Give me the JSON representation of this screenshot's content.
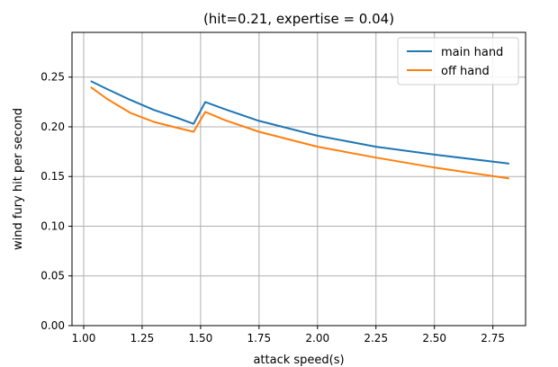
{
  "chart_data": {
    "type": "line",
    "title": "(hit=0.21, expertise = 0.04)",
    "xlabel": "attack speed(s)",
    "ylabel": "wind fury hit per second",
    "xlim": [
      0.95,
      2.89
    ],
    "ylim": [
      0.0,
      0.295
    ],
    "xticks": [
      1.0,
      1.25,
      1.5,
      1.75,
      2.0,
      2.25,
      2.5,
      2.75
    ],
    "xtick_labels": [
      "1.00",
      "1.25",
      "1.50",
      "1.75",
      "2.00",
      "2.25",
      "2.50",
      "2.75"
    ],
    "yticks": [
      0.0,
      0.05,
      0.1,
      0.15,
      0.2,
      0.25
    ],
    "ytick_labels": [
      "0.00",
      "0.05",
      "0.10",
      "0.15",
      "0.20",
      "0.25"
    ],
    "grid": true,
    "legend_position": "top-right",
    "series": [
      {
        "name": "main hand",
        "color": "#1f77b4",
        "x": [
          1.03,
          1.1,
          1.2,
          1.3,
          1.4,
          1.47,
          1.52,
          1.6,
          1.75,
          2.0,
          2.25,
          2.5,
          2.82
        ],
        "y": [
          0.246,
          0.238,
          0.227,
          0.217,
          0.209,
          0.203,
          0.225,
          0.218,
          0.206,
          0.191,
          0.18,
          0.172,
          0.163
        ]
      },
      {
        "name": "off hand",
        "color": "#ff7f0e",
        "x": [
          1.03,
          1.1,
          1.2,
          1.3,
          1.4,
          1.47,
          1.52,
          1.6,
          1.75,
          2.0,
          2.25,
          2.5,
          2.82
        ],
        "y": [
          0.24,
          0.228,
          0.214,
          0.205,
          0.199,
          0.195,
          0.215,
          0.207,
          0.195,
          0.18,
          0.169,
          0.159,
          0.148
        ]
      }
    ]
  }
}
